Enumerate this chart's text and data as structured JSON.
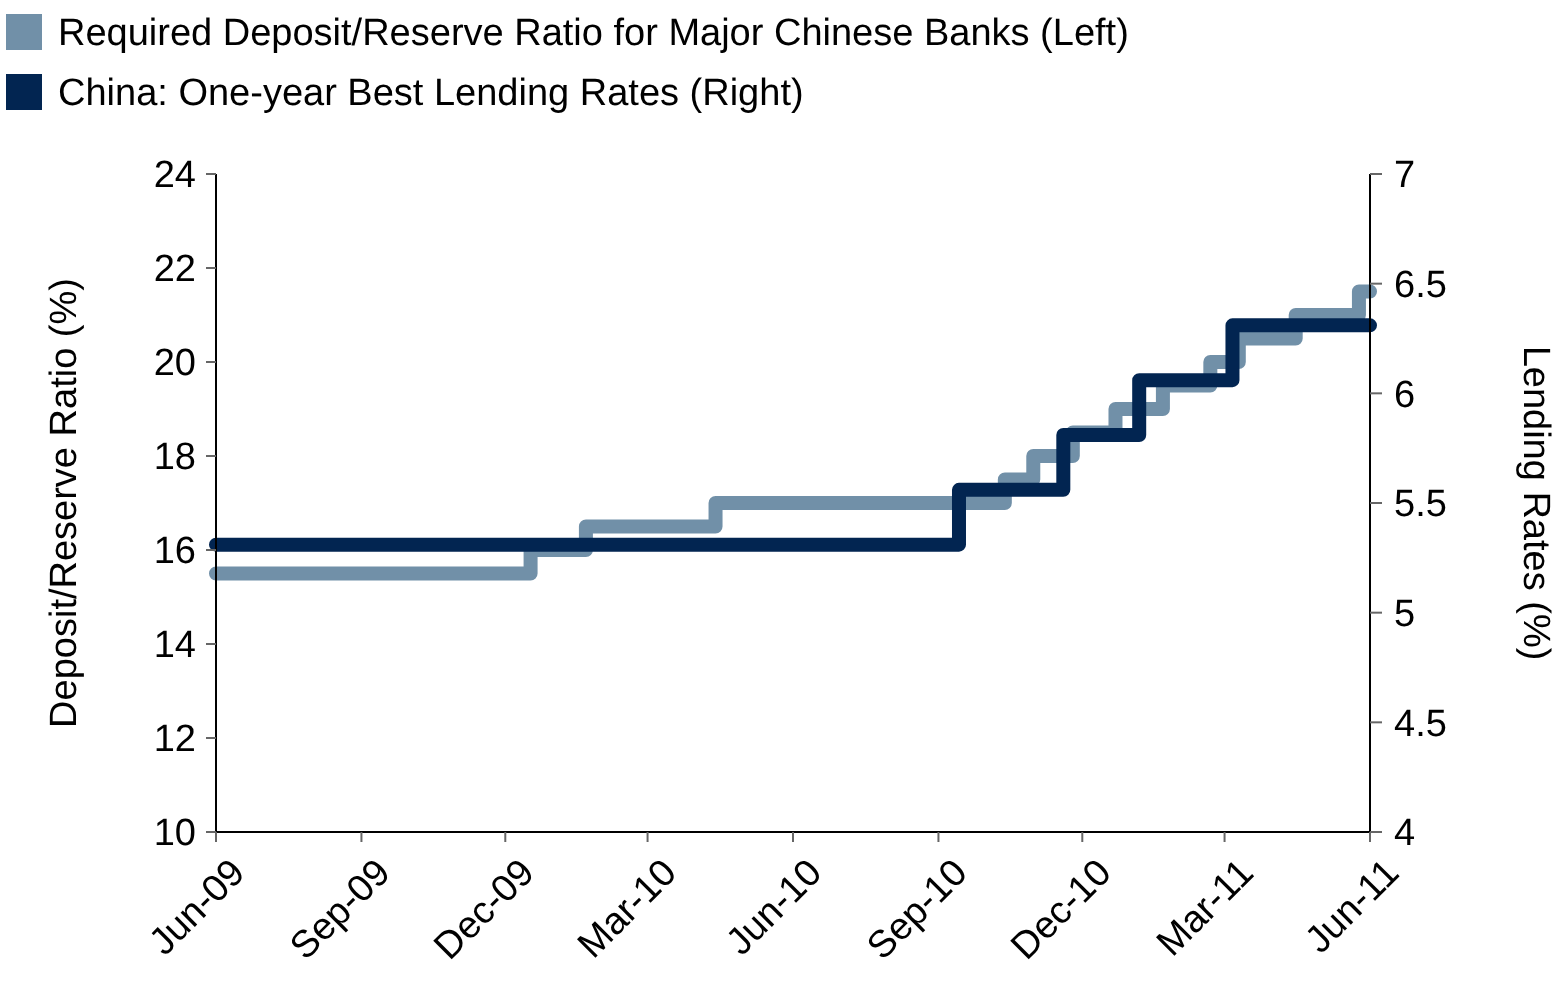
{
  "chart_data": {
    "type": "step",
    "xlim": [
      "2009-06-01",
      "2011-06-01"
    ],
    "xticks": [
      {
        "value": "2009-06-01",
        "label": "Jun-09"
      },
      {
        "value": "2009-09-01",
        "label": "Sep-09"
      },
      {
        "value": "2009-12-01",
        "label": "Dec-09"
      },
      {
        "value": "2010-03-01",
        "label": "Mar-10"
      },
      {
        "value": "2010-06-01",
        "label": "Jun-10"
      },
      {
        "value": "2010-09-01",
        "label": "Sep-10"
      },
      {
        "value": "2010-12-01",
        "label": "Dec-10"
      },
      {
        "value": "2011-03-01",
        "label": "Mar-11"
      },
      {
        "value": "2011-06-01",
        "label": "Jun-11"
      }
    ],
    "ylabel": "Deposit/Reserve Ratio (%)",
    "y2label": "Lending Rates  (%)",
    "ylim": [
      10,
      24
    ],
    "yticks": [
      10,
      12,
      14,
      16,
      18,
      20,
      22,
      24
    ],
    "y2lim": [
      4,
      7
    ],
    "y2ticks": [
      4,
      {
        "value": 4.5,
        "label": "4.5"
      },
      5,
      {
        "value": 5.5,
        "label": "5.5"
      },
      6,
      {
        "value": 6.5,
        "label": "6.5"
      },
      7
    ],
    "legend": "top",
    "grid": false,
    "series": [
      {
        "name": "Required Deposit/Reserve Ratio for Major Chinese Banks (Left)",
        "color": "#7190a8",
        "x": [
          "2009-06-01",
          "2009-12-17",
          "2010-01-21",
          "2010-04-13",
          "2010-10-13",
          "2010-10-31",
          "2010-11-25",
          "2010-12-22",
          "2011-01-21",
          "2011-02-20",
          "2011-03-10",
          "2011-04-15",
          "2011-05-25",
          "2011-06-01"
        ],
        "values": [
          15.5,
          16,
          16.5,
          17,
          17.5,
          18,
          18.5,
          19,
          19.5,
          20,
          20.5,
          21,
          21.5,
          21.5
        ]
      },
      {
        "name": "China: One-year Best Lending Rates (Right)",
        "color": "#022551",
        "axis": "y2",
        "x": [
          "2009-06-01",
          "2010-09-14",
          "2010-11-19",
          "2011-01-06",
          "2011-03-06",
          "2011-06-01"
        ],
        "values": [
          5.31,
          5.56,
          5.81,
          6.06,
          6.31,
          6.31
        ]
      }
    ]
  }
}
